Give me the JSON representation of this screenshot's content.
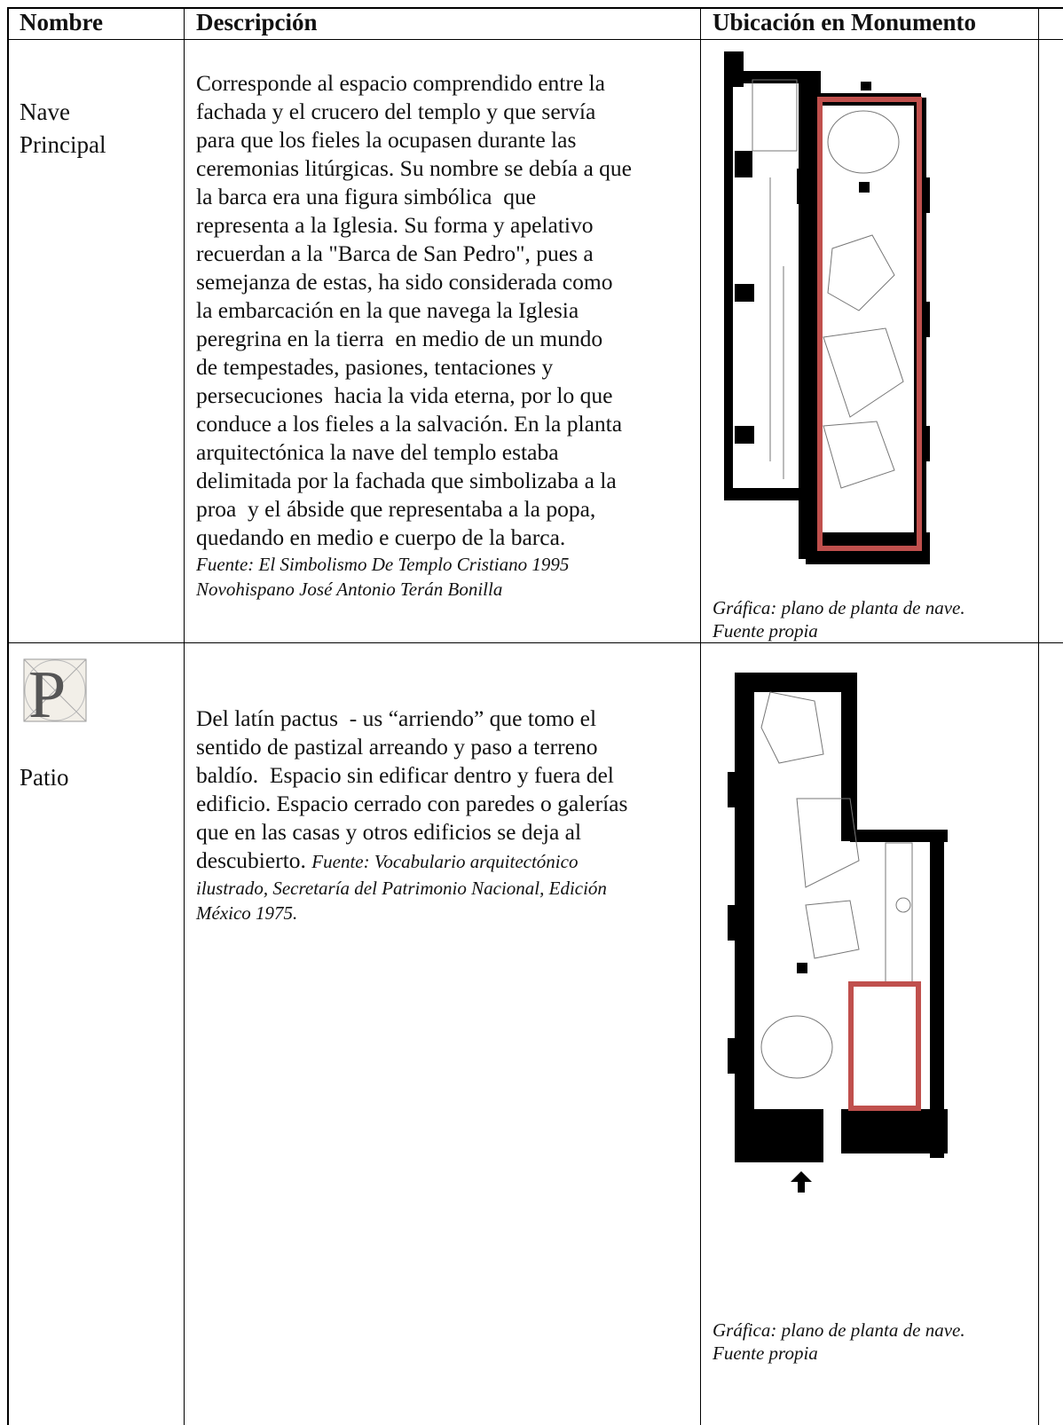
{
  "table": {
    "header": [
      "Nombre",
      "Descripción",
      "Ubicación en Monumento"
    ],
    "rows": [
      {
        "name": "Nave Principal",
        "description_lines": [
          "Corresponde al espacio comprendido entre la",
          "fachada y el crucero del templo y que servía",
          "para que los fieles la ocupasen durante las",
          "ceremonias litúrgicas. Su nombre se debía a que",
          "la barca era una figura simbólica  que",
          "representa a la Iglesia. Su forma y apelativo",
          "recuerdan a la \"Barca de San Pedro\", pues a",
          "semejanza de estas, ha sido considerada como",
          "la embarcación en la que navega la Iglesia",
          "peregrina en la tierra  en medio de un mundo",
          "de tempestades, pasiones, tentaciones y",
          "persecuciones  hacia la vida eterna, por lo que",
          "conduce a los fieles a la salvación. En la planta",
          "arquitectónica la nave del templo estaba",
          "delimitada por la fachada que simbolizaba a la",
          "proa  y el ábside que representaba a la popa,",
          "quedando en medio e cuerpo de la barca."
        ],
        "source_lines": [
          "Fuente: El Simbolismo De Templo Cristiano 1995",
          "Novohispano José Antonio Terán Bonilla"
        ],
        "caption_lines": [
          "Gráfica: plano de planta de nave.",
          "Fuente propia"
        ]
      },
      {
        "name": "Patio",
        "description_lines": [
          "Del latín pactus  - us “arriendo” que tomo el",
          "sentido de pastizal arreando y paso a terreno",
          "baldío.  Espacio sin edificar dentro y fuera del",
          "edificio. Espacio cerrado con paredes o galerías",
          "que en las casas y otros edificios se deja al",
          "descubierto."
        ],
        "source_lines": [
          "Fuente: Vocabulario arquitectónico",
          "ilustrado, Secretaría del Patrimonio Nacional, Edición",
          "México 1975."
        ],
        "caption_lines": [
          "Gráfica: plano de planta de nave.",
          "Fuente propia"
        ]
      }
    ]
  }
}
